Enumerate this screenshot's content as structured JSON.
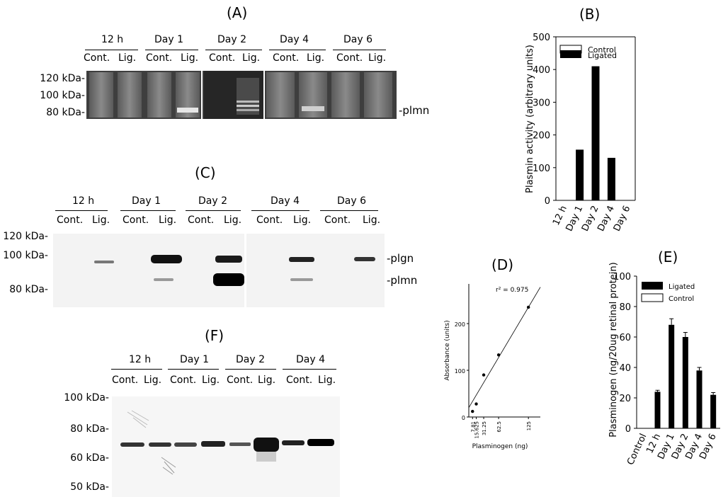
{
  "panelA": {
    "label": "(A)",
    "groups": [
      "12 h",
      "Day 1",
      "Day 2",
      "Day 4",
      "Day 6"
    ],
    "sublabels": [
      "Cont.",
      "Lig."
    ],
    "mw": [
      "120 kDa-",
      "100 kDa-",
      "80 kDa-"
    ],
    "band_annotation": "-plmn"
  },
  "panelB": {
    "label": "(B)",
    "chart_data": {
      "type": "bar",
      "categories": [
        "12 h",
        "Day 1",
        "Day 2",
        "Day 4",
        "Day 6"
      ],
      "series": [
        {
          "name": "Control",
          "values": [
            0,
            0,
            0,
            0,
            0
          ]
        },
        {
          "name": "Ligated",
          "values": [
            0,
            155,
            410,
            130,
            0
          ]
        }
      ],
      "ylabel": "Plasmin activity (arbitrary units)",
      "ylim": [
        0,
        500
      ],
      "yticks": [
        "0",
        "100",
        "200",
        "300",
        "400",
        "500"
      ],
      "legend_position": "top-left"
    }
  },
  "panelC": {
    "label": "(C)",
    "groups": [
      "12 h",
      "Day 1",
      "Day 2",
      "Day 4",
      "Day 6"
    ],
    "sublabels": [
      "Cont.",
      "Lig."
    ],
    "mw": [
      "120 kDa-",
      "100 kDa-",
      "80 kDa-"
    ],
    "band_annotations": [
      "-plgn",
      "-plmn"
    ]
  },
  "panelD": {
    "label": "(D)",
    "chart_data": {
      "type": "scatter",
      "x": [
        7.81,
        15.625,
        31.25,
        62.5,
        125
      ],
      "y": [
        12,
        28,
        90,
        133,
        235
      ],
      "xticks": [
        "7.81",
        "15.625",
        "31.25",
        "62.5",
        "125"
      ],
      "yticks": [
        "0",
        "100",
        "200"
      ],
      "xlabel": "Plasminogen (ng)",
      "ylabel": "Absorbance (units)",
      "ylim": [
        0,
        285
      ],
      "annotation": "r² = 0.975",
      "fit_line": {
        "slope": 1.72,
        "intercept": 20
      }
    }
  },
  "panelE": {
    "label": "(E)",
    "chart_data": {
      "type": "bar",
      "categories": [
        "Control",
        "12 h",
        "Day 1",
        "Day 2",
        "Day 4",
        "Day 6"
      ],
      "series": [
        {
          "name": "Ligated",
          "values": [
            0,
            24,
            68,
            60,
            38,
            22
          ],
          "errors": [
            0,
            1,
            4,
            3,
            2,
            1.5
          ]
        },
        {
          "name": "Control",
          "values": [
            0,
            0,
            0,
            0,
            0,
            0
          ]
        }
      ],
      "ylabel": "Plasminogen (ng/20ug retinal protein)",
      "ylim": [
        0,
        100
      ],
      "yticks": [
        "0",
        "20",
        "40",
        "60",
        "80",
        "100"
      ],
      "legend_position": "top-left"
    }
  },
  "panelF": {
    "label": "(F)",
    "groups": [
      "12 h",
      "Day 1",
      "Day 2",
      "Day 4"
    ],
    "sublabels": [
      "Cont.",
      "Lig."
    ],
    "mw": [
      "100 kDa-",
      "80 kDa-",
      "60 kDa-",
      "50 kDa-"
    ]
  }
}
